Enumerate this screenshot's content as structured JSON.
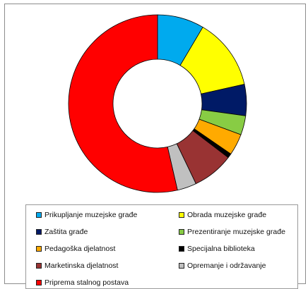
{
  "chart_data": {
    "type": "pie",
    "variant": "donut",
    "title": "",
    "categories": [
      "Prikupljanje muzejske građe",
      "Obrada muzejske građe",
      "Zaštita građe",
      "Prezentiranje muzejske građe",
      "Pedagoška djelatnost",
      "Specijalna biblioteka",
      "Marketinska djelatnost",
      "Opremanje i održavanje",
      "Priprema stalnog postava"
    ],
    "values": [
      8.5,
      13.0,
      5.7,
      3.5,
      3.9,
      0.8,
      7.5,
      3.5,
      53.6
    ],
    "colors": [
      "#00aaee",
      "#ffff00",
      "#001a66",
      "#88cc44",
      "#ffaa00",
      "#000000",
      "#993333",
      "#c0c0c0",
      "#ff0000"
    ],
    "start_angle_deg": 0,
    "direction": "clockwise",
    "legend": {
      "placement": "bottom",
      "columns": 2
    }
  }
}
